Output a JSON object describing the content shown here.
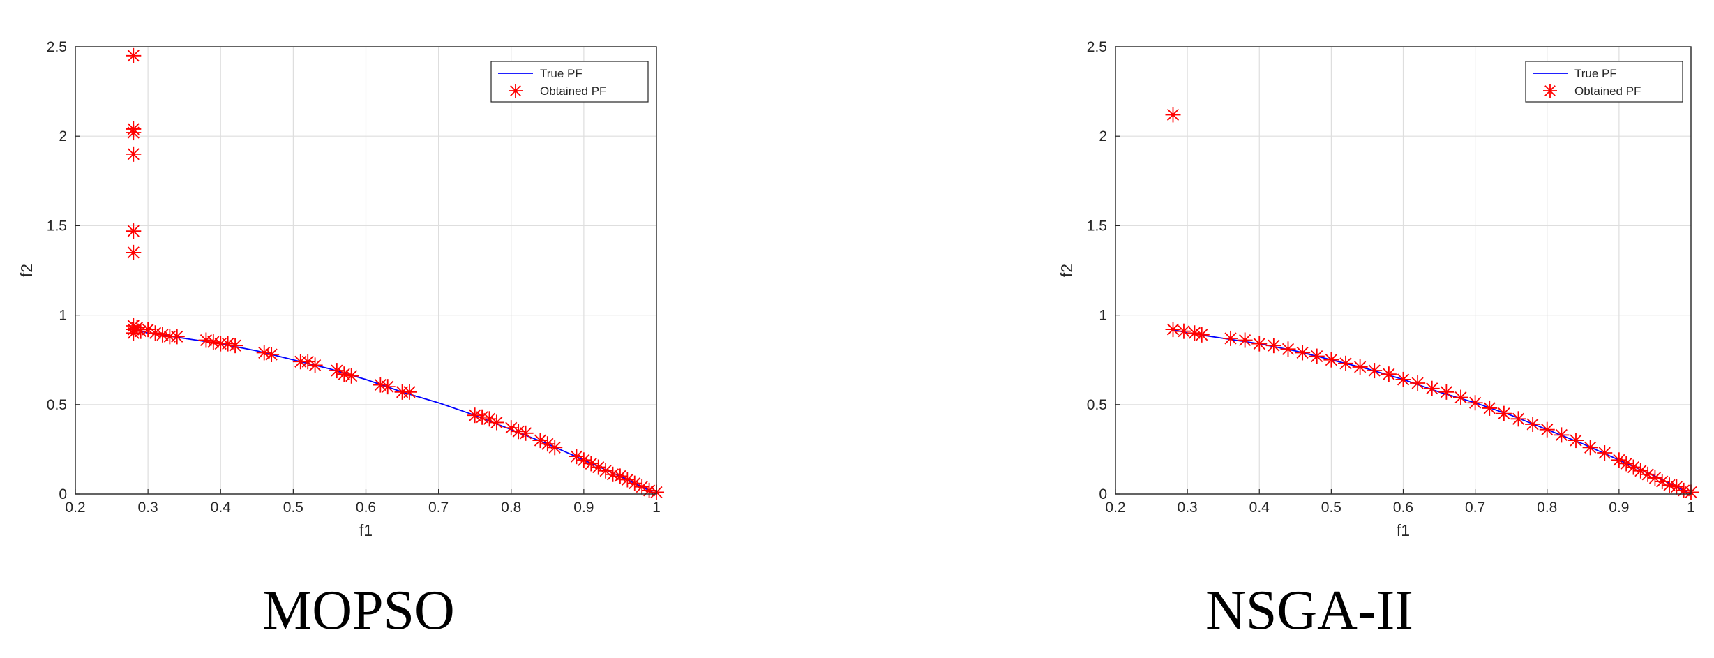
{
  "chart_data": [
    {
      "type": "scatter",
      "caption": "MOPSO",
      "xlabel": "f1",
      "ylabel": "f2",
      "xlim": [
        0.2,
        1
      ],
      "ylim": [
        0,
        2.5
      ],
      "xticks": [
        "0.2",
        "0.3",
        "0.4",
        "0.5",
        "0.6",
        "0.7",
        "0.8",
        "0.9",
        "1"
      ],
      "yticks": [
        "0",
        "0.5",
        "1",
        "1.5",
        "2",
        "2.5"
      ],
      "grid": true,
      "legend_position": "top-right",
      "series": [
        {
          "name": "True PF",
          "kind": "line",
          "color": "#0000ff",
          "x": [
            0.28,
            0.3,
            0.35,
            0.4,
            0.45,
            0.5,
            0.55,
            0.6,
            0.65,
            0.7,
            0.75,
            0.8,
            0.85,
            0.9,
            0.95,
            1.0
          ],
          "y": [
            0.92,
            0.9,
            0.87,
            0.84,
            0.8,
            0.75,
            0.7,
            0.64,
            0.57,
            0.51,
            0.44,
            0.36,
            0.28,
            0.19,
            0.1,
            0.0
          ]
        },
        {
          "name": "Obtained PF",
          "kind": "marker",
          "marker": "asterisk",
          "color": "#ff0000",
          "x": [
            0.28,
            0.28,
            0.28,
            0.28,
            0.28,
            0.28,
            0.28,
            0.28,
            0.28,
            0.285,
            0.29,
            0.3,
            0.31,
            0.32,
            0.33,
            0.34,
            0.38,
            0.39,
            0.4,
            0.41,
            0.42,
            0.46,
            0.47,
            0.51,
            0.52,
            0.53,
            0.56,
            0.57,
            0.58,
            0.62,
            0.63,
            0.65,
            0.66,
            0.75,
            0.76,
            0.77,
            0.78,
            0.8,
            0.81,
            0.82,
            0.84,
            0.85,
            0.86,
            0.89,
            0.9,
            0.91,
            0.92,
            0.93,
            0.94,
            0.95,
            0.96,
            0.97,
            0.98,
            0.99,
            1.0
          ],
          "y": [
            2.45,
            2.04,
            2.02,
            1.9,
            1.47,
            1.35,
            0.94,
            0.92,
            0.9,
            0.93,
            0.91,
            0.92,
            0.9,
            0.89,
            0.88,
            0.88,
            0.86,
            0.85,
            0.84,
            0.84,
            0.83,
            0.79,
            0.78,
            0.74,
            0.74,
            0.72,
            0.69,
            0.67,
            0.66,
            0.61,
            0.6,
            0.57,
            0.57,
            0.44,
            0.43,
            0.42,
            0.4,
            0.37,
            0.35,
            0.34,
            0.3,
            0.28,
            0.26,
            0.21,
            0.19,
            0.17,
            0.15,
            0.13,
            0.11,
            0.1,
            0.08,
            0.06,
            0.04,
            0.02,
            0.01
          ]
        }
      ]
    },
    {
      "type": "scatter",
      "caption": "NSGA-II",
      "xlabel": "f1",
      "ylabel": "f2",
      "xlim": [
        0.2,
        1
      ],
      "ylim": [
        0,
        2.5
      ],
      "xticks": [
        "0.2",
        "0.3",
        "0.4",
        "0.5",
        "0.6",
        "0.7",
        "0.8",
        "0.9",
        "1"
      ],
      "yticks": [
        "0",
        "0.5",
        "1",
        "1.5",
        "2",
        "2.5"
      ],
      "grid": true,
      "legend_position": "top-right",
      "series": [
        {
          "name": "True PF",
          "kind": "line",
          "color": "#0000ff",
          "x": [
            0.28,
            0.3,
            0.35,
            0.4,
            0.45,
            0.5,
            0.55,
            0.6,
            0.65,
            0.7,
            0.75,
            0.8,
            0.85,
            0.9,
            0.95,
            1.0
          ],
          "y": [
            0.92,
            0.9,
            0.87,
            0.84,
            0.8,
            0.75,
            0.7,
            0.64,
            0.57,
            0.51,
            0.44,
            0.36,
            0.28,
            0.19,
            0.1,
            0.0
          ]
        },
        {
          "name": "Obtained PF",
          "kind": "marker",
          "marker": "asterisk",
          "color": "#ff0000",
          "x": [
            0.28,
            0.28,
            0.295,
            0.31,
            0.32,
            0.36,
            0.38,
            0.4,
            0.42,
            0.44,
            0.46,
            0.48,
            0.5,
            0.52,
            0.54,
            0.56,
            0.58,
            0.6,
            0.62,
            0.64,
            0.66,
            0.68,
            0.7,
            0.72,
            0.74,
            0.76,
            0.78,
            0.8,
            0.82,
            0.84,
            0.86,
            0.88,
            0.9,
            0.91,
            0.92,
            0.93,
            0.94,
            0.95,
            0.96,
            0.97,
            0.98,
            0.99,
            1.0
          ],
          "y": [
            2.12,
            0.92,
            0.91,
            0.9,
            0.89,
            0.87,
            0.86,
            0.84,
            0.83,
            0.81,
            0.79,
            0.77,
            0.75,
            0.73,
            0.71,
            0.69,
            0.67,
            0.64,
            0.62,
            0.59,
            0.57,
            0.54,
            0.51,
            0.48,
            0.45,
            0.42,
            0.39,
            0.36,
            0.33,
            0.3,
            0.26,
            0.23,
            0.19,
            0.17,
            0.15,
            0.13,
            0.11,
            0.09,
            0.07,
            0.05,
            0.04,
            0.02,
            0.01
          ]
        }
      ]
    }
  ]
}
